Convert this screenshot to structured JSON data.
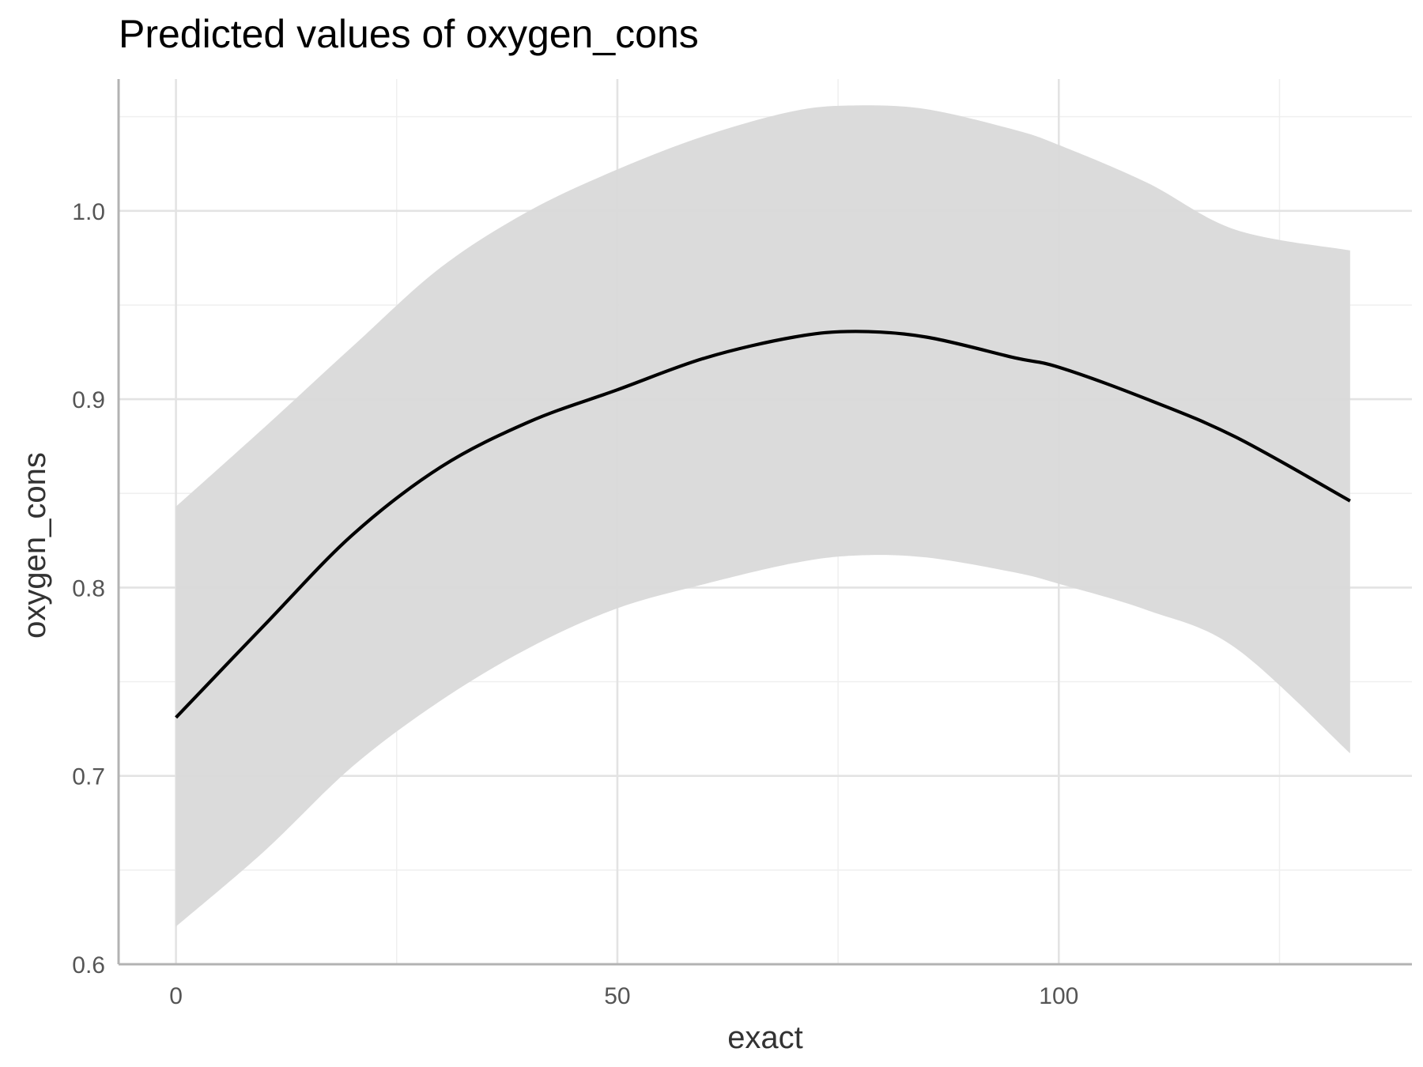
{
  "chart_data": {
    "type": "line",
    "title": "Predicted values of oxygen_cons",
    "xlabel": "exact",
    "ylabel": "oxygen_cons",
    "xlim": [
      -6.5,
      140
    ],
    "ylim": [
      0.6,
      1.07
    ],
    "x_ticks": [
      0,
      50,
      100
    ],
    "x_tick_labels": [
      "0",
      "50",
      "100"
    ],
    "y_ticks": [
      0.6,
      0.7,
      0.8,
      0.9,
      1.0
    ],
    "y_tick_labels": [
      "0.6",
      "0.7",
      "0.8",
      "0.9",
      "1.0"
    ],
    "grid": true,
    "legend": "none",
    "colors": {
      "line": "#000000",
      "ribbon": "#d9d9d9",
      "grid_major": "#e3e3e3",
      "grid_minor": "#efefef",
      "axis": "#b3b3b3"
    },
    "series": [
      {
        "x": [
          0,
          10,
          20,
          30,
          40,
          50,
          60,
          70,
          77,
          85,
          95,
          100,
          110,
          120,
          133
        ],
        "values": [
          0.731,
          0.78,
          0.828,
          0.864,
          0.888,
          0.905,
          0.922,
          0.933,
          0.936,
          0.933,
          0.922,
          0.917,
          0.9,
          0.88,
          0.846
        ],
        "lower": [
          0.62,
          0.66,
          0.705,
          0.74,
          0.768,
          0.789,
          0.802,
          0.813,
          0.817,
          0.816,
          0.808,
          0.802,
          0.788,
          0.768,
          0.712
        ],
        "upper": [
          0.843,
          0.885,
          0.928,
          0.97,
          1.0,
          1.022,
          1.04,
          1.053,
          1.056,
          1.054,
          1.043,
          1.035,
          1.015,
          0.99,
          0.979
        ]
      }
    ]
  }
}
